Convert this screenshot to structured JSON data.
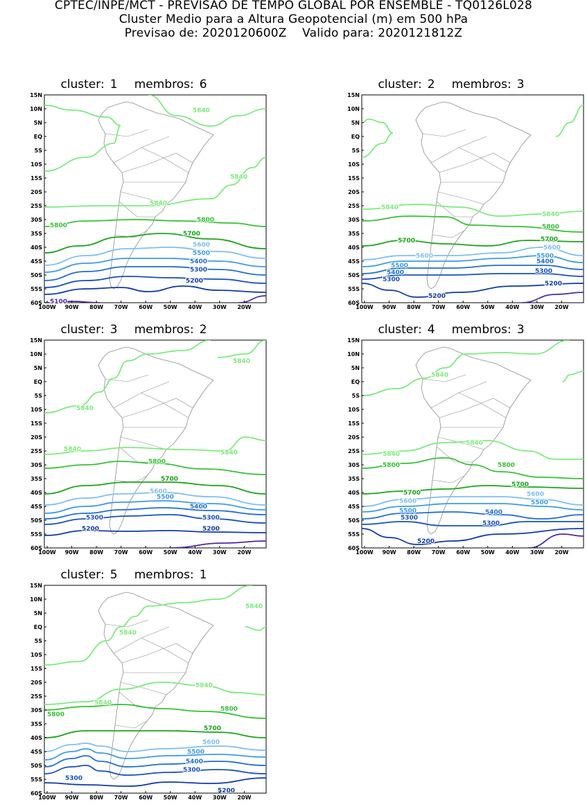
{
  "header": {
    "line1": "CPTEC/INPE/MCT - PREVISAO DE TEMPO GLOBAL POR ENSEMBLE - TQ0126L028",
    "line2": "Cluster Medio para a Altura Geopotencial (m) em 500 hPa",
    "line3_prefix": "Previsao de: 2020120600Z",
    "line3_suffix": "Valido para: 2020121812Z"
  },
  "lat_labels": [
    "15N",
    "10N",
    "5N",
    "EQ",
    "5S",
    "10S",
    "15S",
    "20S",
    "25S",
    "30S",
    "35S",
    "40S",
    "45S",
    "50S",
    "55S",
    "60S"
  ],
  "lon_labels": [
    "100W",
    "90W",
    "80W",
    "70W",
    "60W",
    "50W",
    "40W",
    "30W",
    "20W"
  ],
  "contour_colors": {
    "5840": "#7deb7d",
    "5800": "#35c235",
    "5700": "#1aa51a",
    "5600": "#7fbff2",
    "5500": "#3c9be6",
    "5400": "#1f6fd1",
    "5300": "#1750c0",
    "5200": "#0f3aa8",
    "5100": "#4b2aa5",
    "coast": "#8c8c8c"
  },
  "panels": [
    {
      "cluster_label": "cluster:",
      "cluster_num": "1",
      "members_label": "membros:",
      "members_num": "6",
      "labels": [
        "5840",
        "5840",
        "5840",
        "5800",
        "5700",
        "5600",
        "5500",
        "5400",
        "5300",
        "5200",
        "5800",
        "5100"
      ]
    },
    {
      "cluster_label": "cluster:",
      "cluster_num": "2",
      "members_label": "membros:",
      "members_num": "3",
      "labels": [
        "5840",
        "5840",
        "5800",
        "5700",
        "5700",
        "5600",
        "5600",
        "5500",
        "5500",
        "5400",
        "5400",
        "5300",
        "5300",
        "5200",
        "5200"
      ]
    },
    {
      "cluster_label": "cluster:",
      "cluster_num": "3",
      "members_label": "membros:",
      "members_num": "2",
      "labels": [
        "5840",
        "5840",
        "5840",
        "5840",
        "5800",
        "5700",
        "5600",
        "5500",
        "5400",
        "5300",
        "5300",
        "5200",
        "5200"
      ]
    },
    {
      "cluster_label": "cluster:",
      "cluster_num": "4",
      "members_label": "membros:",
      "members_num": "3",
      "labels": [
        "5840",
        "5840",
        "5840",
        "5800",
        "5800",
        "5700",
        "5700",
        "5600",
        "5600",
        "5500",
        "5500",
        "5400",
        "5300",
        "5300",
        "5200"
      ]
    },
    {
      "cluster_label": "cluster:",
      "cluster_num": "5",
      "members_label": "membros:",
      "members_num": "1",
      "labels": [
        "5840",
        "5840",
        "5840",
        "5840",
        "5800",
        "5800",
        "5700",
        "5600",
        "5500",
        "5400",
        "5300",
        "5300",
        "5200"
      ]
    }
  ]
}
